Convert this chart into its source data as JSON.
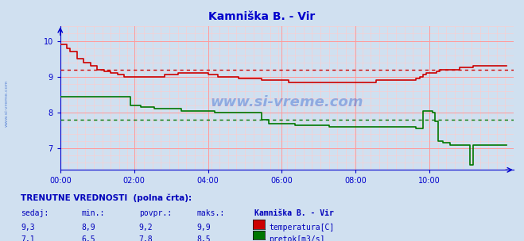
{
  "title": "Kamniška B. - Vir",
  "bg_color": "#d0e0f0",
  "plot_bg_color": "#d0e0f0",
  "grid_color_major": "#ff9999",
  "grid_color_minor": "#ffcccc",
  "axis_color": "#0000cc",
  "title_color": "#0000cc",
  "xlim": [
    0,
    135
  ],
  "ylim": [
    6.4,
    10.4
  ],
  "yticks": [
    7,
    8,
    9,
    10
  ],
  "xtick_labels": [
    "00:00",
    "02:00",
    "04:00",
    "06:00",
    "08:00",
    "10:00"
  ],
  "xtick_positions": [
    0,
    22,
    44,
    66,
    88,
    110
  ],
  "temp_color": "#cc0000",
  "flow_color": "#007700",
  "temp_avg": 9.2,
  "flow_avg": 7.8,
  "temp_data": [
    [
      0,
      9.9
    ],
    [
      2,
      9.8
    ],
    [
      3,
      9.7
    ],
    [
      5,
      9.5
    ],
    [
      7,
      9.4
    ],
    [
      9,
      9.3
    ],
    [
      11,
      9.2
    ],
    [
      13,
      9.15
    ],
    [
      15,
      9.1
    ],
    [
      17,
      9.05
    ],
    [
      19,
      9.0
    ],
    [
      21,
      9.0
    ],
    [
      23,
      9.0
    ],
    [
      25,
      9.0
    ],
    [
      27,
      9.0
    ],
    [
      29,
      9.0
    ],
    [
      31,
      9.05
    ],
    [
      33,
      9.05
    ],
    [
      35,
      9.1
    ],
    [
      37,
      9.1
    ],
    [
      39,
      9.1
    ],
    [
      41,
      9.1
    ],
    [
      43,
      9.1
    ],
    [
      44,
      9.05
    ],
    [
      45,
      9.05
    ],
    [
      46,
      9.05
    ],
    [
      47,
      9.0
    ],
    [
      48,
      9.0
    ],
    [
      49,
      9.0
    ],
    [
      50,
      9.0
    ],
    [
      51,
      9.0
    ],
    [
      53,
      8.95
    ],
    [
      55,
      8.95
    ],
    [
      57,
      8.95
    ],
    [
      60,
      8.9
    ],
    [
      63,
      8.9
    ],
    [
      65,
      8.9
    ],
    [
      67,
      8.9
    ],
    [
      68,
      8.85
    ],
    [
      70,
      8.85
    ],
    [
      72,
      8.85
    ],
    [
      74,
      8.85
    ],
    [
      76,
      8.85
    ],
    [
      78,
      8.85
    ],
    [
      80,
      8.85
    ],
    [
      82,
      8.85
    ],
    [
      84,
      8.85
    ],
    [
      86,
      8.85
    ],
    [
      88,
      8.85
    ],
    [
      90,
      8.85
    ],
    [
      92,
      8.85
    ],
    [
      94,
      8.9
    ],
    [
      96,
      8.9
    ],
    [
      98,
      8.9
    ],
    [
      100,
      8.9
    ],
    [
      102,
      8.9
    ],
    [
      104,
      8.9
    ],
    [
      106,
      8.95
    ],
    [
      107,
      9.0
    ],
    [
      108,
      9.05
    ],
    [
      109,
      9.1
    ],
    [
      110,
      9.1
    ],
    [
      111,
      9.1
    ],
    [
      112,
      9.15
    ],
    [
      113,
      9.2
    ],
    [
      115,
      9.2
    ],
    [
      117,
      9.2
    ],
    [
      119,
      9.25
    ],
    [
      121,
      9.25
    ],
    [
      123,
      9.3
    ],
    [
      125,
      9.3
    ],
    [
      127,
      9.3
    ],
    [
      129,
      9.3
    ],
    [
      131,
      9.3
    ],
    [
      133,
      9.3
    ]
  ],
  "flow_data": [
    [
      0,
      8.45
    ],
    [
      2,
      8.45
    ],
    [
      4,
      8.45
    ],
    [
      6,
      8.45
    ],
    [
      8,
      8.45
    ],
    [
      10,
      8.45
    ],
    [
      12,
      8.45
    ],
    [
      14,
      8.45
    ],
    [
      16,
      8.45
    ],
    [
      18,
      8.45
    ],
    [
      20,
      8.45
    ],
    [
      21,
      8.2
    ],
    [
      22,
      8.2
    ],
    [
      23,
      8.2
    ],
    [
      24,
      8.15
    ],
    [
      25,
      8.15
    ],
    [
      26,
      8.15
    ],
    [
      27,
      8.15
    ],
    [
      28,
      8.1
    ],
    [
      30,
      8.1
    ],
    [
      32,
      8.1
    ],
    [
      34,
      8.1
    ],
    [
      36,
      8.05
    ],
    [
      38,
      8.05
    ],
    [
      40,
      8.05
    ],
    [
      42,
      8.05
    ],
    [
      44,
      8.05
    ],
    [
      45,
      8.05
    ],
    [
      46,
      8.0
    ],
    [
      47,
      8.0
    ],
    [
      48,
      8.0
    ],
    [
      50,
      8.0
    ],
    [
      52,
      8.0
    ],
    [
      54,
      8.0
    ],
    [
      56,
      8.0
    ],
    [
      58,
      8.0
    ],
    [
      60,
      7.8
    ],
    [
      62,
      7.7
    ],
    [
      64,
      7.7
    ],
    [
      66,
      7.7
    ],
    [
      68,
      7.7
    ],
    [
      70,
      7.65
    ],
    [
      72,
      7.65
    ],
    [
      74,
      7.65
    ],
    [
      76,
      7.65
    ],
    [
      78,
      7.65
    ],
    [
      80,
      7.6
    ],
    [
      82,
      7.6
    ],
    [
      84,
      7.6
    ],
    [
      86,
      7.6
    ],
    [
      88,
      7.6
    ],
    [
      90,
      7.6
    ],
    [
      92,
      7.6
    ],
    [
      94,
      7.6
    ],
    [
      96,
      7.6
    ],
    [
      98,
      7.6
    ],
    [
      100,
      7.6
    ],
    [
      102,
      7.6
    ],
    [
      104,
      7.6
    ],
    [
      105,
      7.6
    ],
    [
      106,
      7.55
    ],
    [
      107,
      7.55
    ],
    [
      108,
      8.05
    ],
    [
      109,
      8.05
    ],
    [
      110,
      8.05
    ],
    [
      111,
      8.0
    ],
    [
      111.5,
      7.75
    ],
    [
      112,
      7.75
    ],
    [
      112.5,
      7.2
    ],
    [
      113,
      7.2
    ],
    [
      114,
      7.15
    ],
    [
      115,
      7.15
    ],
    [
      116,
      7.1
    ],
    [
      117,
      7.1
    ],
    [
      118,
      7.1
    ],
    [
      119,
      7.1
    ],
    [
      120,
      7.1
    ],
    [
      121,
      7.1
    ],
    [
      122,
      6.55
    ],
    [
      122.5,
      6.55
    ],
    [
      123,
      7.1
    ],
    [
      124,
      7.1
    ],
    [
      125,
      7.1
    ],
    [
      126,
      7.1
    ],
    [
      127,
      7.1
    ],
    [
      128,
      7.1
    ],
    [
      129,
      7.1
    ],
    [
      130,
      7.1
    ],
    [
      131,
      7.1
    ],
    [
      132,
      7.1
    ],
    [
      133,
      7.1
    ]
  ],
  "footer_color": "#0000bb",
  "footer_header": "TRENUTNE VREDNOSTI  (polna črta):",
  "footer_cols": [
    "sedaj:",
    "min.:",
    "povpr.:",
    "maks.:",
    "Kamniška B. - Vir"
  ],
  "footer_temp": [
    "9,3",
    "8,9",
    "9,2",
    "9,9"
  ],
  "footer_flow": [
    "7,1",
    "6,5",
    "7,8",
    "8,5"
  ],
  "footer_labels": [
    "temperatura[C]",
    "pretok[m3/s]"
  ]
}
